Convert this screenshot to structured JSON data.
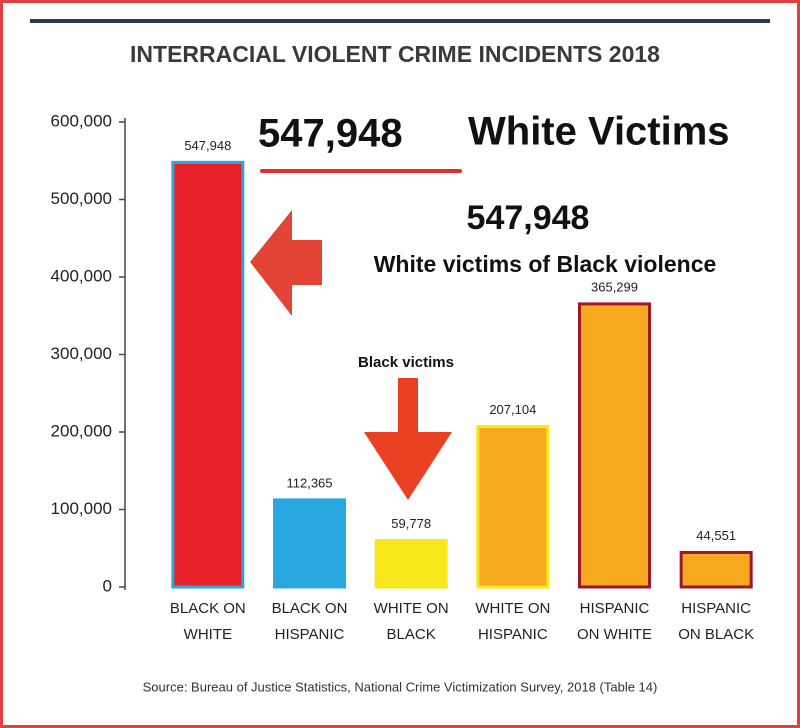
{
  "chart_data": {
    "type": "bar",
    "title": "INTERRACIAL VIOLENT CRIME INCIDENTS 2018",
    "categories": [
      "BLACK ON WHITE",
      "BLACK ON HISPANIC",
      "WHITE ON BLACK",
      "WHITE ON HISPANIC",
      "HISPANIC ON WHITE",
      "HISPANIC ON BLACK"
    ],
    "values": [
      547948,
      112365,
      59778,
      207104,
      365299,
      44551
    ],
    "value_labels": [
      "547,948",
      "112,365",
      "59,778",
      "207,104",
      "365,299",
      "44,551"
    ],
    "colors": [
      "#e8202a",
      "#29a8e0",
      "#f7e81c",
      "#f6a81e",
      "#f6a81e",
      "#f6a81e"
    ],
    "edge_colors": [
      "#29a8e0",
      "#29a8e0",
      "#f7e81c",
      "#f7e81c",
      "#a01828",
      "#a01828"
    ],
    "ylim": [
      0,
      600000
    ],
    "yticks": [
      0,
      {
        "value": 100000,
        "label": "100,000"
      },
      {
        "value": 200000,
        "label": "200,000"
      },
      {
        "value": 300000,
        "label": "300,000"
      },
      {
        "value": 400000,
        "label": "400,000"
      },
      {
        "value": 500000,
        "label": "500,000"
      },
      {
        "value": 600000,
        "label": "600,000"
      }
    ],
    "annotations": [
      "547,948",
      "White Victims",
      "547,948",
      "White victims of Black violence",
      "Black victims"
    ],
    "source": "Source: Bureau of Justice Statistics, National Crime Victimization Survey, 2018 (Table 14)"
  }
}
